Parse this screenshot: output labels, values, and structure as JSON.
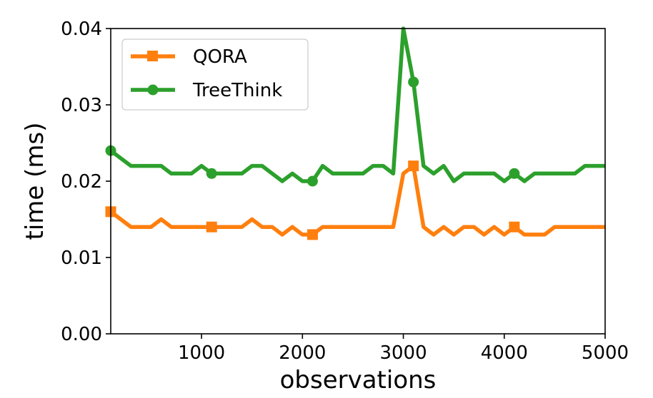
{
  "chart_data": {
    "type": "line",
    "title": "",
    "xlabel": "observations",
    "ylabel": "time (ms)",
    "xlim": [
      100,
      5000
    ],
    "ylim": [
      0.0,
      0.04
    ],
    "xticks": [
      1000,
      2000,
      3000,
      4000,
      5000
    ],
    "xtick_labels": [
      "1000",
      "2000",
      "3000",
      "4000",
      "5000"
    ],
    "yticks": [
      0.0,
      0.01,
      0.02,
      0.03,
      0.04
    ],
    "ytick_labels": [
      "0.00",
      "0.01",
      "0.02",
      "0.03",
      "0.04"
    ],
    "grid": false,
    "legend_position": "top-left",
    "series": [
      {
        "name": "QORA",
        "color": "#ff7f0e",
        "marker": "square",
        "marker_every_x": [
          100,
          1100,
          2100,
          3100,
          4100
        ],
        "x": [
          100,
          200,
          300,
          400,
          500,
          600,
          700,
          800,
          900,
          1000,
          1100,
          1200,
          1300,
          1400,
          1500,
          1600,
          1700,
          1800,
          1900,
          2000,
          2100,
          2200,
          2300,
          2400,
          2500,
          2600,
          2700,
          2800,
          2900,
          3000,
          3100,
          3200,
          3300,
          3400,
          3500,
          3600,
          3700,
          3800,
          3900,
          4000,
          4100,
          4200,
          4300,
          4400,
          4500,
          4600,
          4700,
          4800,
          4900,
          5000
        ],
        "values": [
          0.016,
          0.015,
          0.014,
          0.014,
          0.014,
          0.015,
          0.014,
          0.014,
          0.014,
          0.014,
          0.014,
          0.014,
          0.014,
          0.014,
          0.015,
          0.014,
          0.014,
          0.013,
          0.014,
          0.013,
          0.013,
          0.014,
          0.014,
          0.014,
          0.014,
          0.014,
          0.014,
          0.014,
          0.014,
          0.021,
          0.022,
          0.014,
          0.013,
          0.014,
          0.013,
          0.014,
          0.014,
          0.013,
          0.014,
          0.013,
          0.014,
          0.013,
          0.013,
          0.013,
          0.014,
          0.014,
          0.014,
          0.014,
          0.014,
          0.014
        ]
      },
      {
        "name": "TreeThink",
        "color": "#2ca02c",
        "marker": "circle",
        "marker_every_x": [
          100,
          1100,
          2100,
          3100,
          4100
        ],
        "x": [
          100,
          200,
          300,
          400,
          500,
          600,
          700,
          800,
          900,
          1000,
          1100,
          1200,
          1300,
          1400,
          1500,
          1600,
          1700,
          1800,
          1900,
          2000,
          2100,
          2200,
          2300,
          2400,
          2500,
          2600,
          2700,
          2800,
          2900,
          3000,
          3100,
          3200,
          3300,
          3400,
          3500,
          3600,
          3700,
          3800,
          3900,
          4000,
          4100,
          4200,
          4300,
          4400,
          4500,
          4600,
          4700,
          4800,
          4900,
          5000
        ],
        "values": [
          0.024,
          0.023,
          0.022,
          0.022,
          0.022,
          0.022,
          0.021,
          0.021,
          0.021,
          0.022,
          0.021,
          0.021,
          0.021,
          0.021,
          0.022,
          0.022,
          0.021,
          0.02,
          0.021,
          0.02,
          0.02,
          0.022,
          0.021,
          0.021,
          0.021,
          0.021,
          0.022,
          0.022,
          0.021,
          0.04,
          0.033,
          0.022,
          0.021,
          0.022,
          0.02,
          0.021,
          0.021,
          0.021,
          0.021,
          0.02,
          0.021,
          0.02,
          0.021,
          0.021,
          0.021,
          0.021,
          0.021,
          0.022,
          0.022,
          0.022
        ]
      }
    ]
  }
}
